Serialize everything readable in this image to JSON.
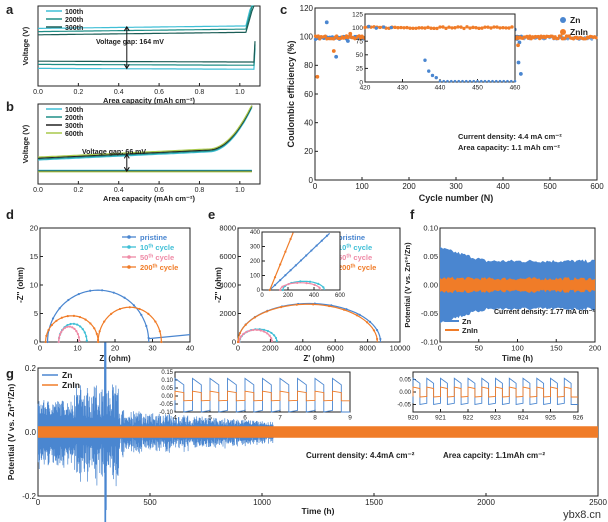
{
  "colors": {
    "zn": "#4a86d0",
    "znin": "#f07c28",
    "cyan": "#3fbfd6",
    "teal": "#1f8f87",
    "dark_teal": "#1b5e57",
    "olive": "#a9c94a",
    "pink": "#ef8aa6",
    "black": "#222222"
  },
  "watermark": "ybx8.cn",
  "chart_data": [
    {
      "panel": "a",
      "type": "line",
      "title": "",
      "xlabel": "Area capacity (mAh cm⁻²)",
      "ylabel": "Voltage (V)",
      "xlim": [
        0,
        1.1
      ],
      "xticks": [
        "0.0",
        "0.2",
        "0.4",
        "0.6",
        "0.8",
        "1.0"
      ],
      "annotation": "Voltage gap: 164 mV",
      "series": [
        {
          "name": "100th",
          "color": "cyan",
          "charge": 0.72,
          "discharge": 0.22,
          "end_rise": 1.0
        },
        {
          "name": "200th",
          "color": "teal",
          "charge": 0.68,
          "discharge": 0.27,
          "end_rise": 0.93
        },
        {
          "name": "300th",
          "color": "dark_teal",
          "charge": 0.64,
          "discharge": 0.31,
          "end_rise": 0.88
        }
      ]
    },
    {
      "panel": "b",
      "type": "line",
      "title": "",
      "xlabel": "Area capacity (mAh cm⁻²)",
      "ylabel": "Voltage (V)",
      "xlim": [
        0,
        1.1
      ],
      "xticks": [
        "0.0",
        "0.2",
        "0.4",
        "0.6",
        "0.8",
        "1.0"
      ],
      "annotation": "Voltage gap: 66 mV",
      "series": [
        {
          "name": "100th",
          "color": "cyan"
        },
        {
          "name": "200th",
          "color": "teal"
        },
        {
          "name": "300th",
          "color": "black"
        },
        {
          "name": "600th",
          "color": "olive"
        }
      ]
    },
    {
      "panel": "c",
      "type": "scatter",
      "xlabel": "Cycle number (N)",
      "ylabel": "Coulombic efficiency (%)",
      "xlim": [
        0,
        600
      ],
      "ylim": [
        0,
        120
      ],
      "xticks": [
        0,
        100,
        200,
        300,
        400,
        500,
        600
      ],
      "yticks": [
        0,
        20,
        40,
        60,
        80,
        100,
        120
      ],
      "legend": [
        "Zn",
        "ZnIn"
      ],
      "legend_position": "top-right",
      "annotations": [
        "Current density: 4.4 mA cm⁻²",
        "Area capacity: 1.1 mAh cm⁻²"
      ],
      "inset": {
        "xlim": [
          420,
          460
        ],
        "ylim": [
          0,
          125
        ],
        "xticks": [
          420,
          430,
          440,
          450,
          460
        ],
        "yticks": [
          0,
          25,
          50,
          75,
          100,
          125
        ]
      },
      "series": [
        {
          "name": "Zn",
          "color": "zn",
          "steady": 99.2,
          "end_cycle": 440,
          "outliers": [
            [
              25,
              110
            ],
            [
              45,
              86
            ],
            [
              70,
              97
            ],
            [
              425,
              105
            ],
            [
              430,
              100
            ],
            [
              433,
              82
            ],
            [
              435,
              96
            ],
            [
              438,
              74
            ]
          ]
        },
        {
          "name": "ZnIn",
          "color": "znin",
          "steady": 99.5,
          "end_cycle": 600,
          "outliers": [
            [
              5,
              72
            ],
            [
              40,
              90
            ],
            [
              75,
              102
            ],
            [
              432,
              94
            ]
          ]
        }
      ]
    },
    {
      "panel": "d",
      "type": "line",
      "xlabel": "Z' (ohm)",
      "ylabel": "-Z'' (ohm)",
      "xlim": [
        0,
        40
      ],
      "ylim": [
        0,
        20
      ],
      "xticks": [
        0,
        10,
        20,
        30,
        40
      ],
      "yticks": [
        0,
        5,
        10,
        15,
        20
      ],
      "series": [
        {
          "name": "pristine",
          "color": "zn",
          "start": 2,
          "end": 29,
          "peak": 9.1,
          "tail_to": 40
        },
        {
          "name": "10th cycle",
          "label_html": [
            "10",
            "th",
            " cycle"
          ],
          "color": "cyan",
          "start": 5,
          "end": 12.5,
          "peak": 3.2
        },
        {
          "name": "50th cycle",
          "label_html": [
            "50",
            "th",
            " cycle"
          ],
          "color": "pink",
          "start": 5,
          "end": 10.5,
          "peak": 2.7
        },
        {
          "name": "200th cycle",
          "label_html": [
            "200",
            "th",
            " cycle"
          ],
          "color": "znin",
          "start": 1.5,
          "end": 15.5,
          "peak": 4.6,
          "tail_to": 29,
          "tail_peak": 6.1
        }
      ]
    },
    {
      "panel": "e",
      "type": "line",
      "xlabel": "Z' (ohm)",
      "ylabel": "-Z'' (ohm)",
      "xlim": [
        0,
        10000
      ],
      "ylim": [
        0,
        8000
      ],
      "xticks": [
        0,
        2000,
        4000,
        6000,
        8000,
        10000
      ],
      "yticks": [
        0,
        2000,
        4000,
        6000,
        8000
      ],
      "inset": {
        "xlim": [
          0,
          600
        ],
        "ylim": [
          0,
          400
        ],
        "xticks": [
          0,
          200,
          400,
          600
        ],
        "yticks": [
          0,
          100,
          200,
          300,
          400
        ]
      },
      "series": [
        {
          "name": "pristine",
          "color": "zn",
          "start": 0,
          "end": 8800,
          "peak": 2700
        },
        {
          "name": "10th cycle",
          "label_html": [
            "10",
            "th",
            " cycle"
          ],
          "color": "cyan",
          "start": 100,
          "end": 2400,
          "peak": 900
        },
        {
          "name": "50th cycle",
          "label_html": [
            "50",
            "th",
            " cycle"
          ],
          "color": "pink",
          "start": 80,
          "end": 2100,
          "peak": 850
        },
        {
          "name": "200th cycle",
          "label_html": [
            "200",
            "th",
            " cycle"
          ],
          "color": "znin",
          "start": 0,
          "end": 8600,
          "peak": 2650
        }
      ]
    },
    {
      "panel": "f",
      "type": "line",
      "xlabel": "Time (h)",
      "ylabel": "Potential (V vs. Zn²⁺/Zn)",
      "xlim": [
        0,
        200
      ],
      "ylim": [
        -0.1,
        0.1
      ],
      "xticks": [
        0,
        50,
        100,
        150,
        200
      ],
      "yticks": [
        "-0.10",
        "-0.05",
        "0.00",
        "0.05",
        "0.10"
      ],
      "annotation": "Current density: 1.77 mA cm⁻²",
      "legend": [
        "Zn",
        "ZnIn"
      ],
      "legend_position": "bottom-left",
      "series": [
        {
          "name": "Zn",
          "color": "zn",
          "amplitude_start": 0.065,
          "amplitude_end": 0.042
        },
        {
          "name": "ZnIn",
          "color": "znin",
          "amplitude_start": 0.012,
          "amplitude_end": 0.011
        }
      ]
    },
    {
      "panel": "g",
      "type": "line",
      "xlabel": "Time (h)",
      "ylabel": "Potential (V vs. Zn²⁺/Zn)",
      "xlim": [
        0,
        2500
      ],
      "ylim": [
        -0.2,
        0.2
      ],
      "xticks": [
        0,
        500,
        1000,
        1500,
        2000,
        2500
      ],
      "yticks": [
        "-0.2",
        "0.0",
        "0.2"
      ],
      "annotations": [
        "Current density: 4.4mA cm⁻²",
        "Area capcity: 1.1mAh cm⁻²"
      ],
      "legend": [
        "Zn",
        "ZnIn"
      ],
      "legend_position": "top-left",
      "insets": [
        {
          "xlim": [
            4,
            9
          ],
          "ylim": [
            -0.1,
            0.15
          ],
          "xticks": [
            4,
            5,
            6,
            7,
            8,
            9
          ],
          "yticks": [
            "-0.10",
            "-0.05",
            "0.00",
            "0.05",
            "0.10",
            "0.15"
          ]
        },
        {
          "xlim": [
            920,
            926
          ],
          "ylim": [
            -0.08,
            0.08
          ],
          "xticks": [
            920,
            921,
            922,
            923,
            924,
            925,
            926
          ],
          "yticks": [
            "-0.05",
            "0.00",
            "0.05"
          ]
        }
      ],
      "series": [
        {
          "name": "Zn",
          "color": "zn",
          "amplitude_start": 0.05,
          "amplitude_peak": 0.28,
          "peak_time": 300,
          "end_time": 1050
        },
        {
          "name": "ZnIn",
          "color": "znin",
          "amplitude": 0.018,
          "end_time": 2500
        }
      ]
    }
  ]
}
